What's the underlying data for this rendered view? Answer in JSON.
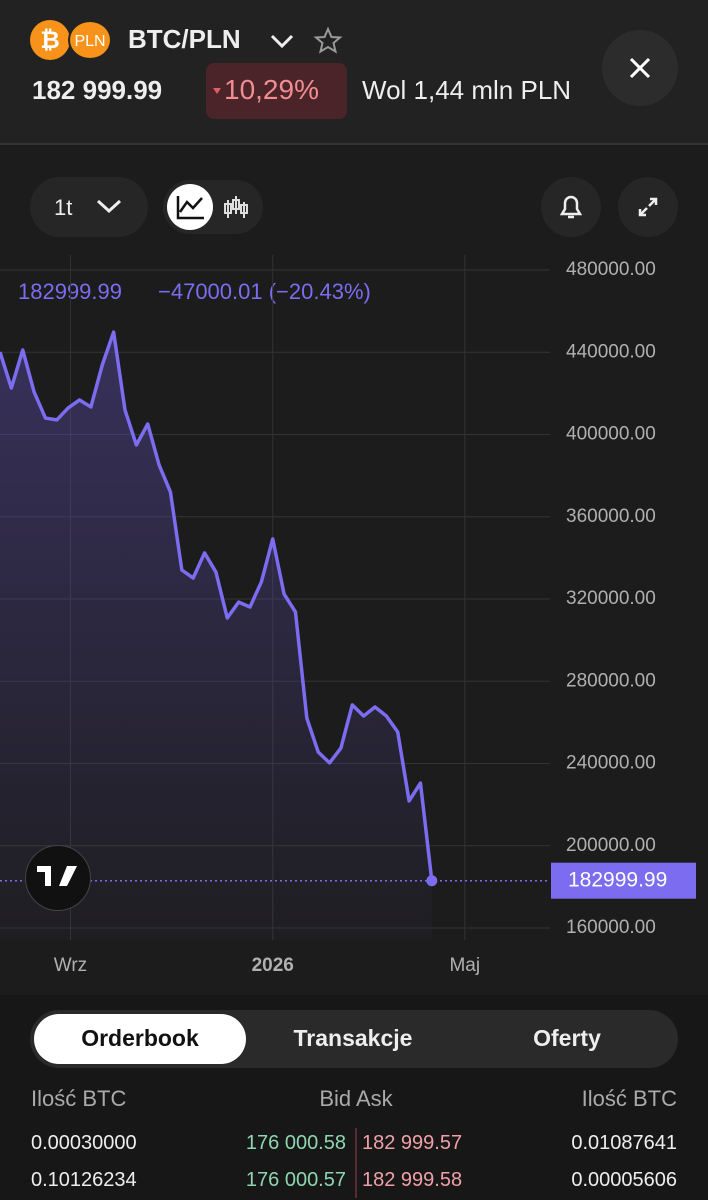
{
  "header": {
    "base_symbol": "₿",
    "quote_badge": "PLN",
    "pair": "BTC/PLN",
    "price": "182 999.99",
    "change": "10,29%",
    "volume": "Wol 1,44 mln PLN"
  },
  "toolbar": {
    "interval": "1t"
  },
  "chart_data": {
    "type": "line",
    "legend": {
      "price": "182999.99",
      "change": "−47000.01 (−20.43%)"
    },
    "price_marker": "182999.99",
    "x": [
      0,
      1,
      2,
      3,
      4,
      5,
      6,
      7,
      8,
      9,
      10,
      11,
      12,
      13,
      14,
      15,
      16,
      17,
      18,
      19,
      20,
      21,
      22,
      23,
      24,
      25,
      26,
      27,
      28,
      29,
      30,
      31,
      32,
      33,
      34,
      35,
      36,
      37,
      38
    ],
    "series": [
      {
        "color": "#7b6cf0",
        "values": [
          440100,
          422600,
          441100,
          420700,
          408000,
          407100,
          412900,
          416800,
          413400,
          433800,
          449800,
          411900,
          394900,
          405100,
          385200,
          372000,
          334100,
          330200,
          342400,
          333100,
          310800,
          318500,
          316100,
          328300,
          349200,
          322400,
          313700,
          262100,
          245600,
          240300,
          247500,
          268500,
          263100,
          267500,
          263100,
          255300,
          221800,
          230500,
          182999.99
        ]
      }
    ],
    "xlim": [
      0,
      48.4
    ],
    "xticks": [
      {
        "value": 6.2,
        "label": "Wrz"
      },
      {
        "value": 24,
        "label": "2026"
      },
      {
        "value": 40.9,
        "label": "Maj"
      }
    ],
    "ylim": [
      160000,
      480000
    ],
    "yticks": [
      {
        "value": 160000,
        "label": "160000.00"
      },
      {
        "value": 200000,
        "label": "200000.00"
      },
      {
        "value": 240000,
        "label": "240000.00"
      },
      {
        "value": 280000,
        "label": "280000.00"
      },
      {
        "value": 320000,
        "label": "320000.00"
      },
      {
        "value": 360000,
        "label": "360000.00"
      },
      {
        "value": 400000,
        "label": "400000.00"
      },
      {
        "value": 440000,
        "label": "440000.00"
      },
      {
        "value": 480000,
        "label": "480000.00"
      }
    ],
    "grid": true
  },
  "tabs": [
    "Orderbook",
    "Transakcje",
    "Oferty"
  ],
  "orderbook": {
    "columns": [
      "Ilość BTC",
      "Bid Ask",
      "Ilość BTC"
    ],
    "rows": [
      [
        "0.00030000",
        "176 000.58",
        "182 999.57",
        "0.01087641"
      ],
      [
        "0.10126234",
        "176 000.57",
        "182 999.58",
        "0.00005606"
      ]
    ]
  }
}
